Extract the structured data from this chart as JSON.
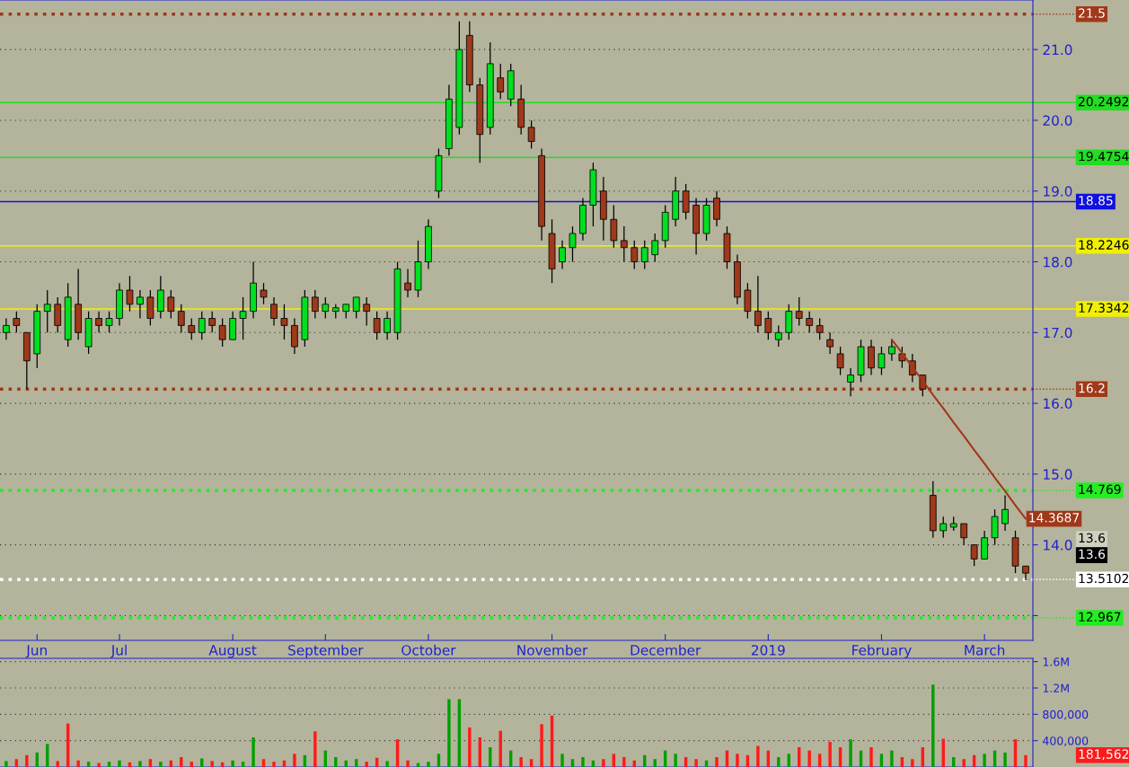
{
  "chart_data": [
    {
      "type": "candlestick",
      "grid": "y",
      "legend": false,
      "categories": [
        null,
        null,
        null,
        "Jun",
        null,
        null,
        null,
        null,
        null,
        null,
        null,
        "Jul",
        null,
        null,
        null,
        null,
        null,
        null,
        null,
        null,
        null,
        null,
        "August",
        null,
        null,
        null,
        null,
        null,
        null,
        null,
        null,
        "September",
        null,
        null,
        null,
        null,
        null,
        null,
        null,
        null,
        null,
        "October",
        null,
        null,
        null,
        null,
        null,
        null,
        null,
        null,
        null,
        null,
        null,
        "November",
        null,
        null,
        null,
        null,
        null,
        null,
        null,
        null,
        null,
        null,
        "December",
        null,
        null,
        null,
        null,
        null,
        null,
        null,
        null,
        null,
        "2019",
        null,
        null,
        null,
        null,
        null,
        null,
        null,
        null,
        null,
        null,
        "February",
        null,
        null,
        null,
        null,
        null,
        null,
        null,
        null,
        null,
        "March",
        null,
        null,
        null,
        null
      ],
      "ohlc": [
        [
          17.0,
          17.2,
          16.9,
          17.1
        ],
        [
          17.2,
          17.3,
          17.0,
          17.1
        ],
        [
          17.0,
          17.0,
          16.2,
          16.6
        ],
        [
          16.7,
          17.4,
          16.5,
          17.3
        ],
        [
          17.3,
          17.6,
          17.0,
          17.4
        ],
        [
          17.4,
          17.5,
          17.0,
          17.1
        ],
        [
          16.9,
          17.7,
          16.8,
          17.5
        ],
        [
          17.4,
          17.9,
          16.9,
          17.0
        ],
        [
          16.8,
          17.3,
          16.7,
          17.2
        ],
        [
          17.2,
          17.3,
          17.0,
          17.1
        ],
        [
          17.1,
          17.3,
          17.0,
          17.2
        ],
        [
          17.2,
          17.7,
          17.1,
          17.6
        ],
        [
          17.6,
          17.8,
          17.3,
          17.4
        ],
        [
          17.4,
          17.6,
          17.2,
          17.5
        ],
        [
          17.5,
          17.6,
          17.1,
          17.2
        ],
        [
          17.3,
          17.8,
          17.2,
          17.6
        ],
        [
          17.5,
          17.6,
          17.2,
          17.3
        ],
        [
          17.3,
          17.4,
          17.0,
          17.1
        ],
        [
          17.1,
          17.2,
          16.9,
          17.0
        ],
        [
          17.0,
          17.3,
          16.9,
          17.2
        ],
        [
          17.2,
          17.3,
          17.0,
          17.1
        ],
        [
          17.1,
          17.2,
          16.8,
          16.9
        ],
        [
          16.9,
          17.3,
          16.9,
          17.2
        ],
        [
          17.2,
          17.5,
          16.9,
          17.3
        ],
        [
          17.3,
          18.0,
          17.2,
          17.7
        ],
        [
          17.6,
          17.7,
          17.4,
          17.5
        ],
        [
          17.4,
          17.5,
          17.1,
          17.2
        ],
        [
          17.2,
          17.4,
          16.9,
          17.1
        ],
        [
          17.1,
          17.2,
          16.7,
          16.8
        ],
        [
          16.9,
          17.6,
          16.8,
          17.5
        ],
        [
          17.5,
          17.6,
          17.2,
          17.3
        ],
        [
          17.3,
          17.5,
          17.2,
          17.4
        ],
        [
          17.3,
          17.4,
          17.2,
          17.35
        ],
        [
          17.3,
          17.4,
          17.2,
          17.4
        ],
        [
          17.3,
          17.5,
          17.2,
          17.5
        ],
        [
          17.4,
          17.5,
          17.1,
          17.3
        ],
        [
          17.2,
          17.3,
          16.9,
          17.0
        ],
        [
          17.0,
          17.3,
          16.9,
          17.2
        ],
        [
          17.0,
          18.0,
          16.9,
          17.9
        ],
        [
          17.7,
          17.9,
          17.5,
          17.6
        ],
        [
          17.6,
          18.3,
          17.5,
          18.0
        ],
        [
          18.0,
          18.6,
          17.9,
          18.5
        ],
        [
          19.0,
          19.6,
          18.9,
          19.5
        ],
        [
          19.6,
          20.5,
          19.5,
          20.3
        ],
        [
          19.9,
          21.4,
          19.8,
          21.0
        ],
        [
          21.2,
          21.4,
          20.4,
          20.5
        ],
        [
          20.5,
          20.6,
          19.4,
          19.8
        ],
        [
          19.9,
          21.1,
          19.8,
          20.8
        ],
        [
          20.6,
          20.8,
          20.3,
          20.4
        ],
        [
          20.3,
          20.8,
          20.2,
          20.7
        ],
        [
          20.3,
          20.5,
          19.8,
          19.9
        ],
        [
          19.9,
          20.0,
          19.6,
          19.7
        ],
        [
          19.5,
          19.6,
          18.3,
          18.5
        ],
        [
          18.4,
          18.6,
          17.7,
          17.9
        ],
        [
          18.0,
          18.3,
          17.9,
          18.2
        ],
        [
          18.2,
          18.5,
          18.0,
          18.4
        ],
        [
          18.4,
          18.9,
          18.3,
          18.8
        ],
        [
          18.8,
          19.4,
          18.5,
          19.3
        ],
        [
          19.0,
          19.2,
          18.3,
          18.6
        ],
        [
          18.6,
          18.8,
          18.2,
          18.3
        ],
        [
          18.3,
          18.5,
          18.0,
          18.2
        ],
        [
          18.2,
          18.3,
          17.9,
          18.0
        ],
        [
          18.0,
          18.3,
          17.9,
          18.2
        ],
        [
          18.1,
          18.4,
          18.0,
          18.3
        ],
        [
          18.3,
          18.8,
          18.2,
          18.7
        ],
        [
          18.6,
          19.2,
          18.5,
          19.0
        ],
        [
          19.0,
          19.1,
          18.6,
          18.7
        ],
        [
          18.8,
          18.9,
          18.1,
          18.4
        ],
        [
          18.4,
          18.9,
          18.3,
          18.8
        ],
        [
          18.9,
          19.0,
          18.5,
          18.6
        ],
        [
          18.4,
          18.5,
          17.9,
          18.0
        ],
        [
          18.0,
          18.1,
          17.4,
          17.5
        ],
        [
          17.6,
          17.7,
          17.2,
          17.3
        ],
        [
          17.3,
          17.8,
          17.0,
          17.1
        ],
        [
          17.2,
          17.3,
          16.9,
          17.0
        ],
        [
          16.9,
          17.1,
          16.8,
          17.0
        ],
        [
          17.0,
          17.4,
          16.9,
          17.3
        ],
        [
          17.3,
          17.5,
          17.1,
          17.2
        ],
        [
          17.2,
          17.3,
          17.0,
          17.1
        ],
        [
          17.1,
          17.2,
          16.9,
          17.0
        ],
        [
          16.9,
          17.0,
          16.7,
          16.8
        ],
        [
          16.7,
          16.8,
          16.4,
          16.5
        ],
        [
          16.3,
          16.5,
          16.1,
          16.4
        ],
        [
          16.4,
          16.9,
          16.3,
          16.8
        ],
        [
          16.8,
          16.9,
          16.4,
          16.5
        ],
        [
          16.5,
          16.8,
          16.4,
          16.7
        ],
        [
          16.7,
          16.9,
          16.6,
          16.8
        ],
        [
          16.7,
          16.8,
          16.5,
          16.6
        ],
        [
          16.6,
          16.7,
          16.3,
          16.4
        ],
        [
          16.4,
          16.4,
          16.1,
          16.2
        ],
        [
          14.7,
          14.9,
          14.1,
          14.2
        ],
        [
          14.2,
          14.4,
          14.1,
          14.3
        ],
        [
          14.25,
          14.4,
          14.2,
          14.3
        ],
        [
          14.3,
          14.3,
          14.0,
          14.1
        ],
        [
          14.0,
          14.0,
          13.7,
          13.8
        ],
        [
          13.8,
          14.2,
          13.8,
          14.1
        ],
        [
          14.1,
          14.5,
          14.0,
          14.4
        ],
        [
          14.3,
          14.7,
          14.2,
          14.5
        ],
        [
          14.1,
          14.2,
          13.6,
          13.7
        ],
        [
          13.7,
          13.7,
          13.5,
          13.6
        ]
      ],
      "colors": [
        "#00e020",
        "#a0381a",
        "#a0381a",
        "#00e020",
        "#00e020",
        "#a0381a",
        "#00e020",
        "#a0381a",
        "#00e020",
        "#a0381a",
        "#00e020",
        "#00e020",
        "#a0381a",
        "#00e020",
        "#a0381a",
        "#00e020",
        "#a0381a",
        "#a0381a",
        "#a0381a",
        "#00e020",
        "#a0381a",
        "#a0381a",
        "#00e020",
        "#00e020",
        "#00e020",
        "#a0381a",
        "#a0381a",
        "#a0381a",
        "#a0381a",
        "#00e020",
        "#a0381a",
        "#00e020",
        "#00e020",
        "#00e020",
        "#00e020",
        "#a0381a",
        "#a0381a",
        "#00e020",
        "#00e020",
        "#a0381a",
        "#00e020",
        "#00e020",
        "#00e020",
        "#00e020",
        "#00e020",
        "#a0381a",
        "#a0381a",
        "#00e020",
        "#a0381a",
        "#00e020",
        "#a0381a",
        "#a0381a",
        "#a0381a",
        "#a0381a",
        "#00e020",
        "#00e020",
        "#00e020",
        "#00e020",
        "#a0381a",
        "#a0381a",
        "#a0381a",
        "#a0381a",
        "#00e020",
        "#00e020",
        "#00e020",
        "#00e020",
        "#a0381a",
        "#a0381a",
        "#00e020",
        "#a0381a",
        "#a0381a",
        "#a0381a",
        "#a0381a",
        "#a0381a",
        "#a0381a",
        "#00e020",
        "#00e020",
        "#a0381a",
        "#a0381a",
        "#a0381a",
        "#a0381a",
        "#a0381a",
        "#00e020",
        "#00e020",
        "#a0381a",
        "#00e020",
        "#00e020",
        "#a0381a",
        "#a0381a",
        "#a0381a",
        "#a0381a",
        "#00e020",
        "#00e020",
        "#a0381a",
        "#a0381a",
        "#00e020",
        "#00e020",
        "#00e020",
        "#a0381a",
        "#a0381a"
      ],
      "series": [
        {
          "type": "line",
          "color": "#a0381a",
          "values": [
            null,
            null,
            null,
            null,
            null,
            null,
            null,
            null,
            null,
            null,
            null,
            null,
            null,
            null,
            null,
            null,
            null,
            null,
            null,
            null,
            null,
            null,
            null,
            null,
            null,
            null,
            null,
            null,
            null,
            null,
            null,
            null,
            null,
            null,
            null,
            null,
            null,
            null,
            null,
            null,
            null,
            null,
            null,
            null,
            null,
            null,
            null,
            null,
            null,
            null,
            null,
            null,
            null,
            null,
            null,
            null,
            null,
            null,
            null,
            null,
            null,
            null,
            null,
            null,
            null,
            null,
            null,
            null,
            null,
            null,
            null,
            null,
            null,
            null,
            null,
            null,
            null,
            null,
            null,
            null,
            null,
            null,
            null,
            null,
            null,
            null,
            16.9,
            16.71,
            16.51,
            16.32,
            16.12,
            15.93,
            15.73,
            15.54,
            15.34,
            15.15,
            14.95,
            14.76,
            14.56,
            14.3687
          ],
          "value_labels": [
            null,
            null,
            null,
            null,
            null,
            null,
            null,
            null,
            null,
            null,
            null,
            null,
            null,
            null,
            null,
            null,
            null,
            null,
            null,
            null,
            null,
            null,
            null,
            null,
            null,
            null,
            null,
            null,
            null,
            null,
            null,
            null,
            null,
            null,
            null,
            null,
            null,
            null,
            null,
            null,
            null,
            null,
            null,
            null,
            null,
            null,
            null,
            null,
            null,
            null,
            null,
            null,
            null,
            null,
            null,
            null,
            null,
            null,
            null,
            null,
            null,
            null,
            null,
            null,
            null,
            null,
            null,
            null,
            null,
            null,
            null,
            null,
            null,
            null,
            null,
            null,
            null,
            null,
            null,
            null,
            null,
            null,
            null,
            null,
            null,
            null,
            null,
            null,
            null,
            null,
            null,
            null,
            null,
            null,
            null,
            null,
            null,
            null,
            null,
            "14.3687"
          ]
        }
      ],
      "ylim": [
        12.65,
        21.7
      ],
      "yticks": [
        {
          "value": 13,
          "label": null
        },
        {
          "value": 14,
          "label": "14.0"
        },
        {
          "value": 15,
          "label": "15.0"
        },
        {
          "value": 16,
          "label": "16.0"
        },
        {
          "value": 17,
          "label": "17.0"
        },
        {
          "value": 18,
          "label": "18.0"
        },
        {
          "value": 19,
          "label": "19.0"
        },
        {
          "value": 20,
          "label": "20.0"
        },
        {
          "value": 21,
          "label": "21.0"
        }
      ],
      "ref_lines": [
        {
          "axis": "y",
          "value": 21.5,
          "label": "21.5",
          "color": "#a0381a",
          "line_style": "dotted"
        },
        {
          "axis": "y",
          "value": 20.2492,
          "label": "20.2492",
          "color": "#22dd22",
          "line_style": "solid"
        },
        {
          "axis": "y",
          "value": 19.4754,
          "label": "19.4754",
          "color": "#22dd22",
          "line_style": "solid"
        },
        {
          "axis": "y",
          "value": 18.85,
          "label": "18.85",
          "color": "#1010e0",
          "line_style": "solid"
        },
        {
          "axis": "y",
          "value": 18.2246,
          "label": "18.2246",
          "color": "#f0f000",
          "line_style": "solid"
        },
        {
          "axis": "y",
          "value": 17.3342,
          "label": "17.3342",
          "color": "#f0f000",
          "line_style": "solid"
        },
        {
          "axis": "y",
          "value": 16.2,
          "label": "16.2",
          "color": "#a0381a",
          "line_style": "dotted"
        },
        {
          "axis": "y",
          "value": 14.769,
          "label": "14.769",
          "color": "#22ee22",
          "line_style": "dotted"
        },
        {
          "axis": "y",
          "value": 13.5102,
          "label": "13.5102",
          "color": "#ffffff",
          "line_style": "dotted"
        },
        {
          "axis": "y",
          "value": 12.967,
          "label": "12.967",
          "color": "#22ee22",
          "line_style": "dotted"
        }
      ],
      "annotations": [
        "13.6",
        "13.6"
      ]
    },
    {
      "type": "bar",
      "grid": "y",
      "legend": false,
      "tick_labels": "y",
      "categories": [
        null,
        null,
        null,
        null,
        null,
        null,
        null,
        null,
        null,
        null,
        null,
        null,
        null,
        null,
        null,
        null,
        null,
        null,
        null,
        null,
        null,
        null,
        null,
        null,
        null,
        null,
        null,
        null,
        null,
        null,
        null,
        null,
        null,
        null,
        null,
        null,
        null,
        null,
        null,
        null,
        null,
        null,
        null,
        null,
        null,
        null,
        null,
        null,
        null,
        null,
        null,
        null,
        null,
        null,
        null,
        null,
        null,
        null,
        null,
        null,
        null,
        null,
        null,
        null,
        null,
        null,
        null,
        null,
        null,
        null,
        null,
        null,
        null,
        null,
        null,
        null,
        null,
        null,
        null,
        null,
        null,
        null,
        null,
        null,
        null,
        null,
        null,
        null,
        null,
        null,
        null,
        null,
        null,
        null,
        null,
        null,
        null,
        null,
        null,
        null
      ],
      "values": [
        90000,
        120000,
        180000,
        220000,
        350000,
        90000,
        660000,
        100000,
        80000,
        60000,
        80000,
        100000,
        70000,
        90000,
        120000,
        80000,
        100000,
        150000,
        80000,
        130000,
        90000,
        70000,
        100000,
        80000,
        450000,
        120000,
        80000,
        100000,
        200000,
        180000,
        540000,
        250000,
        150000,
        100000,
        120000,
        80000,
        140000,
        90000,
        420000,
        100000,
        60000,
        80000,
        200000,
        1030000,
        1030000,
        600000,
        450000,
        300000,
        550000,
        250000,
        150000,
        120000,
        650000,
        780000,
        200000,
        120000,
        150000,
        100000,
        120000,
        200000,
        150000,
        100000,
        180000,
        120000,
        250000,
        200000,
        150000,
        120000,
        100000,
        150000,
        250000,
        200000,
        180000,
        320000,
        250000,
        150000,
        200000,
        300000,
        250000,
        200000,
        380000,
        300000,
        420000,
        250000,
        300000,
        200000,
        250000,
        150000,
        120000,
        300000,
        1250000,
        430000,
        150000,
        120000,
        180000,
        200000,
        250000,
        220000,
        420000,
        180000
      ],
      "colors": [
        "#00a000",
        "#ff1a1a",
        "#ff1a1a",
        "#00a000",
        "#00a000",
        "#ff1a1a",
        "#ff1a1a",
        "#ff1a1a",
        "#00a000",
        "#ff1a1a",
        "#00a000",
        "#00a000",
        "#ff1a1a",
        "#00a000",
        "#ff1a1a",
        "#00a000",
        "#ff1a1a",
        "#ff1a1a",
        "#ff1a1a",
        "#00a000",
        "#ff1a1a",
        "#ff1a1a",
        "#00a000",
        "#00a000",
        "#00a000",
        "#ff1a1a",
        "#ff1a1a",
        "#ff1a1a",
        "#ff1a1a",
        "#00a000",
        "#ff1a1a",
        "#00a000",
        "#00a000",
        "#00a000",
        "#00a000",
        "#ff1a1a",
        "#ff1a1a",
        "#00a000",
        "#ff1a1a",
        "#ff1a1a",
        "#00a000",
        "#00a000",
        "#00a000",
        "#00a000",
        "#00a000",
        "#ff1a1a",
        "#ff1a1a",
        "#00a000",
        "#ff1a1a",
        "#00a000",
        "#ff1a1a",
        "#ff1a1a",
        "#ff1a1a",
        "#ff1a1a",
        "#00a000",
        "#00a000",
        "#00a000",
        "#00a000",
        "#ff1a1a",
        "#ff1a1a",
        "#ff1a1a",
        "#ff1a1a",
        "#00a000",
        "#00a000",
        "#00a000",
        "#00a000",
        "#ff1a1a",
        "#ff1a1a",
        "#00a000",
        "#ff1a1a",
        "#ff1a1a",
        "#ff1a1a",
        "#ff1a1a",
        "#ff1a1a",
        "#ff1a1a",
        "#00a000",
        "#00a000",
        "#ff1a1a",
        "#ff1a1a",
        "#ff1a1a",
        "#ff1a1a",
        "#ff1a1a",
        "#00a000",
        "#00a000",
        "#ff1a1a",
        "#00a000",
        "#00a000",
        "#ff1a1a",
        "#ff1a1a",
        "#ff1a1a",
        "#00a000",
        "#ff1a1a",
        "#00a000",
        "#ff1a1a",
        "#ff1a1a",
        "#00a000",
        "#00a000",
        "#00a000",
        "#ff1a1a",
        "#ff1a1a"
      ],
      "annotations": [
        "181,562"
      ],
      "ylim": [
        0,
        1650000
      ],
      "yticks": [
        {
          "value": 400000,
          "label": "400,000"
        },
        {
          "value": 800000,
          "label": "800,000"
        },
        {
          "value": 1200000,
          "label": "1.2M"
        },
        {
          "value": 1600000,
          "label": "1.6M"
        }
      ]
    }
  ]
}
